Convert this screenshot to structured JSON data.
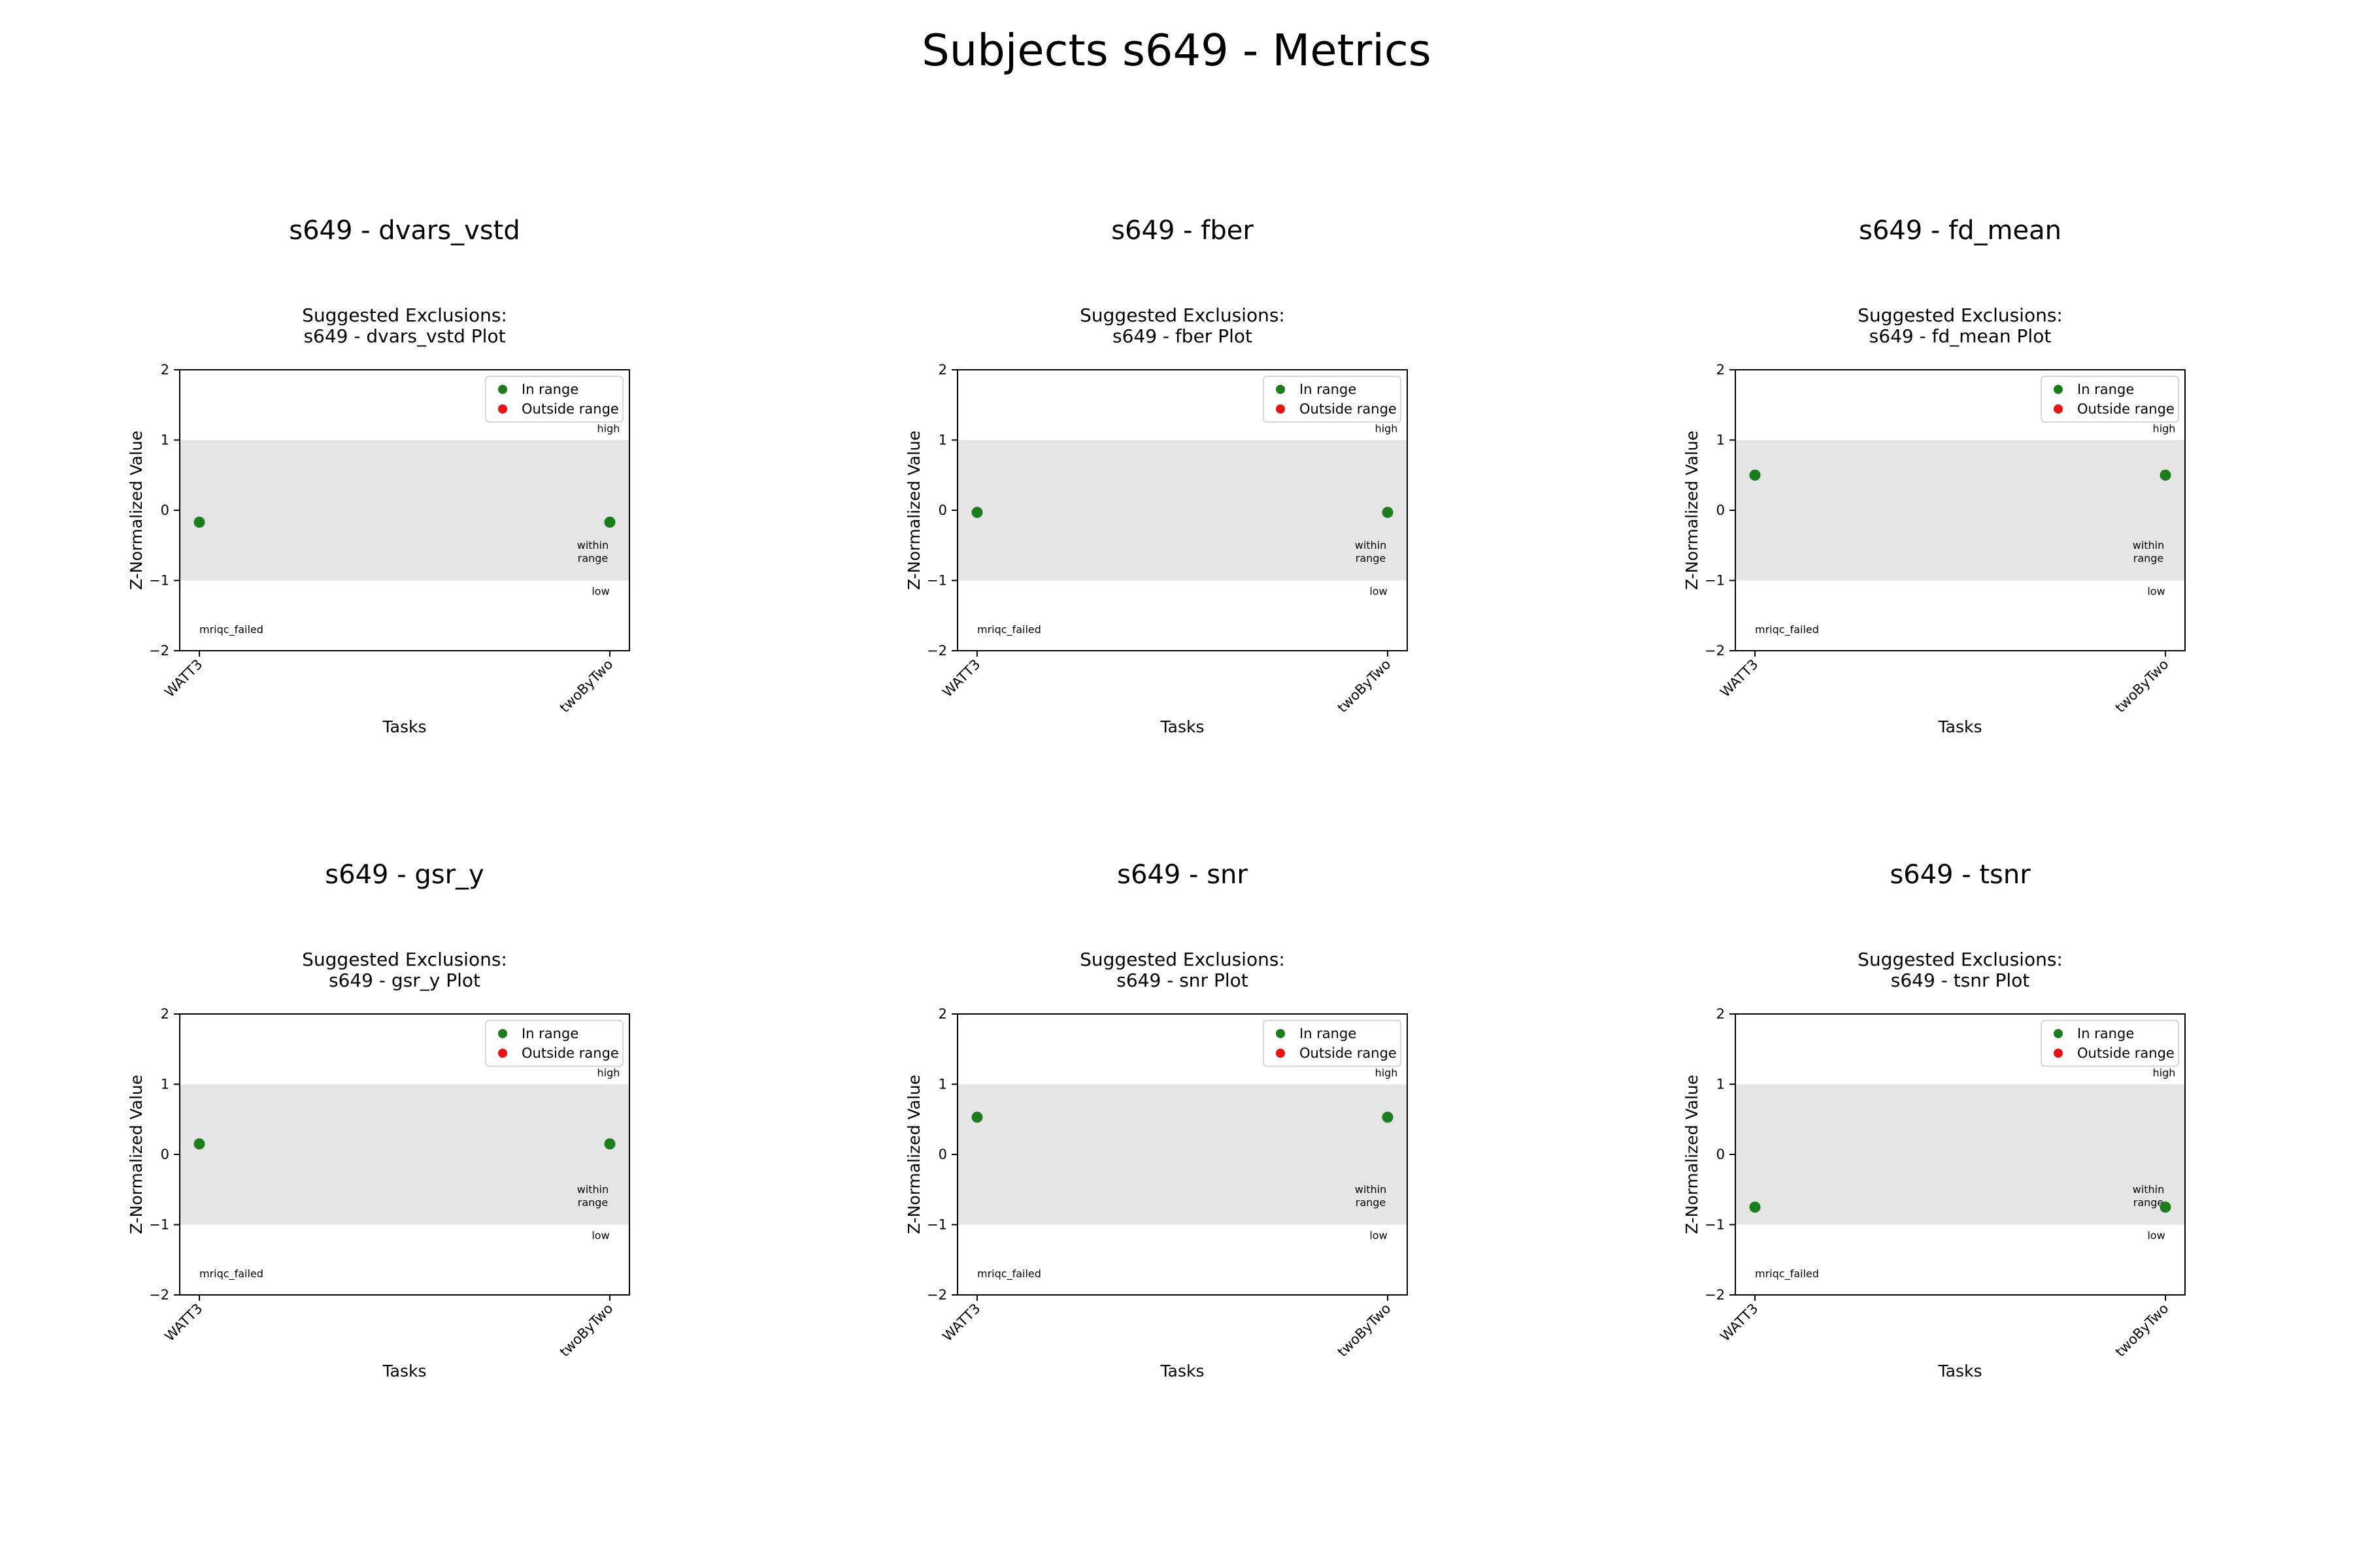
{
  "figure": {
    "title": "Subjects s649 - Metrics"
  },
  "colors": {
    "in_range": "#1a7f1a",
    "outside_range": "#ee1111",
    "band": "#e5e5e5",
    "axes": "#000000"
  },
  "chart_data": [
    {
      "type": "scatter",
      "panel_title": "s649 - dvars_vstd",
      "title": "Suggested Exclusions:\ns649 - dvars_vstd Plot",
      "xlabel": "Tasks",
      "ylabel": "Z-Normalized Value",
      "categories": [
        "WATT3",
        "twoByTwo"
      ],
      "ylim": [
        -2,
        2
      ],
      "yticks": [
        "2",
        "1",
        "0",
        "−1",
        "−2"
      ],
      "band": [
        -1,
        1
      ],
      "series": [
        {
          "name": "In range",
          "x": [
            "WATT3",
            "twoByTwo"
          ],
          "y": [
            -0.17,
            -0.17
          ]
        },
        {
          "name": "Outside range",
          "x": [],
          "y": []
        }
      ],
      "legend": "top-right",
      "annotations": {
        "high": "high",
        "within": "within\nrange",
        "low": "low",
        "failed": "mriqc_failed"
      }
    },
    {
      "type": "scatter",
      "panel_title": "s649 - fber",
      "title": "Suggested Exclusions:\ns649 - fber Plot",
      "xlabel": "Tasks",
      "ylabel": "Z-Normalized Value",
      "categories": [
        "WATT3",
        "twoByTwo"
      ],
      "ylim": [
        -2,
        2
      ],
      "yticks": [
        "2",
        "1",
        "0",
        "−1",
        "−2"
      ],
      "band": [
        -1,
        1
      ],
      "series": [
        {
          "name": "In range",
          "x": [
            "WATT3",
            "twoByTwo"
          ],
          "y": [
            -0.03,
            -0.03
          ]
        },
        {
          "name": "Outside range",
          "x": [],
          "y": []
        }
      ],
      "legend": "top-right",
      "annotations": {
        "high": "high",
        "within": "within\nrange",
        "low": "low",
        "failed": "mriqc_failed"
      }
    },
    {
      "type": "scatter",
      "panel_title": "s649 - fd_mean",
      "title": "Suggested Exclusions:\ns649 - fd_mean Plot",
      "xlabel": "Tasks",
      "ylabel": "Z-Normalized Value",
      "categories": [
        "WATT3",
        "twoByTwo"
      ],
      "ylim": [
        -2,
        2
      ],
      "yticks": [
        "2",
        "1",
        "0",
        "−1",
        "−2"
      ],
      "band": [
        -1,
        1
      ],
      "series": [
        {
          "name": "In range",
          "x": [
            "WATT3",
            "twoByTwo"
          ],
          "y": [
            0.5,
            0.5
          ]
        },
        {
          "name": "Outside range",
          "x": [],
          "y": []
        }
      ],
      "legend": "top-right",
      "annotations": {
        "high": "high",
        "within": "within\nrange",
        "low": "low",
        "failed": "mriqc_failed"
      }
    },
    {
      "type": "scatter",
      "panel_title": "s649 - gsr_y",
      "title": "Suggested Exclusions:\ns649 - gsr_y Plot",
      "xlabel": "Tasks",
      "ylabel": "Z-Normalized Value",
      "categories": [
        "WATT3",
        "twoByTwo"
      ],
      "ylim": [
        -2,
        2
      ],
      "yticks": [
        "2",
        "1",
        "0",
        "−1",
        "−2"
      ],
      "band": [
        -1,
        1
      ],
      "series": [
        {
          "name": "In range",
          "x": [
            "WATT3",
            "twoByTwo"
          ],
          "y": [
            0.15,
            0.15
          ]
        },
        {
          "name": "Outside range",
          "x": [],
          "y": []
        }
      ],
      "legend": "top-right",
      "annotations": {
        "high": "high",
        "within": "within\nrange",
        "low": "low",
        "failed": "mriqc_failed"
      }
    },
    {
      "type": "scatter",
      "panel_title": "s649 - snr",
      "title": "Suggested Exclusions:\ns649 - snr Plot",
      "xlabel": "Tasks",
      "ylabel": "Z-Normalized Value",
      "categories": [
        "WATT3",
        "twoByTwo"
      ],
      "ylim": [
        -2,
        2
      ],
      "yticks": [
        "2",
        "1",
        "0",
        "−1",
        "−2"
      ],
      "band": [
        -1,
        1
      ],
      "series": [
        {
          "name": "In range",
          "x": [
            "WATT3",
            "twoByTwo"
          ],
          "y": [
            0.53,
            0.53
          ]
        },
        {
          "name": "Outside range",
          "x": [],
          "y": []
        }
      ],
      "legend": "top-right",
      "annotations": {
        "high": "high",
        "within": "within\nrange",
        "low": "low",
        "failed": "mriqc_failed"
      }
    },
    {
      "type": "scatter",
      "panel_title": "s649 - tsnr",
      "title": "Suggested Exclusions:\ns649 - tsnr Plot",
      "xlabel": "Tasks",
      "ylabel": "Z-Normalized Value",
      "categories": [
        "WATT3",
        "twoByTwo"
      ],
      "ylim": [
        -2,
        2
      ],
      "yticks": [
        "2",
        "1",
        "0",
        "−1",
        "−2"
      ],
      "band": [
        -1,
        1
      ],
      "series": [
        {
          "name": "In range",
          "x": [
            "WATT3",
            "twoByTwo"
          ],
          "y": [
            -0.75,
            -0.75
          ]
        },
        {
          "name": "Outside range",
          "x": [],
          "y": []
        }
      ],
      "legend": "top-right",
      "annotations": {
        "high": "high",
        "within": "within\nrange",
        "low": "low",
        "failed": "mriqc_failed"
      }
    }
  ]
}
